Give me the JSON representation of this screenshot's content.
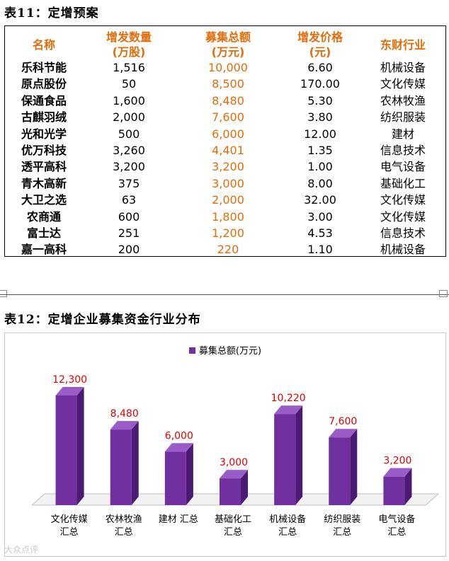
{
  "table_section": {
    "caption": "表11：定增预案",
    "headers": [
      "名称",
      "增发数量\n(万股)",
      "募集总额\n(万元)",
      "增发价格\n(元)",
      "东财行业"
    ],
    "rows": [
      {
        "name": "乐科节能",
        "shares": "1,516",
        "amount": "10,000",
        "price": "6.60",
        "industry": "机械设备"
      },
      {
        "name": "原点股份",
        "shares": "50",
        "amount": "8,500",
        "price": "170.00",
        "industry": "文化传媒"
      },
      {
        "name": "保通食品",
        "shares": "1,600",
        "amount": "8,480",
        "price": "5.30",
        "industry": "农林牧渔"
      },
      {
        "name": "古麒羽绒",
        "shares": "2,000",
        "amount": "7,600",
        "price": "3.80",
        "industry": "纺织服装"
      },
      {
        "name": "光和光学",
        "shares": "500",
        "amount": "6,000",
        "price": "12.00",
        "industry": "建材"
      },
      {
        "name": "优万科技",
        "shares": "3,260",
        "amount": "4,401",
        "price": "1.35",
        "industry": "信息技术"
      },
      {
        "name": "透平高科",
        "shares": "3,200",
        "amount": "3,200",
        "price": "1.00",
        "industry": "电气设备"
      },
      {
        "name": "青木高新",
        "shares": "375",
        "amount": "3,000",
        "price": "8.00",
        "industry": "基础化工"
      },
      {
        "name": "大卫之选",
        "shares": "63",
        "amount": "2,000",
        "price": "32.00",
        "industry": "文化传媒"
      },
      {
        "name": "农商通",
        "shares": "600",
        "amount": "1,800",
        "price": "3.00",
        "industry": "文化传媒"
      },
      {
        "name": "富士达",
        "shares": "251",
        "amount": "1,200",
        "price": "4.53",
        "industry": "信息技术"
      },
      {
        "name": "嘉一高科",
        "shares": "200",
        "amount": "220",
        "price": "1.10",
        "industry": "机械设备"
      }
    ]
  },
  "chart_section": {
    "caption": "表12：定增企业募集资金行业分布"
  },
  "watermark": "大众点评",
  "colors": {
    "bar": "#7030a0",
    "bar_side": "#4b1a73",
    "bar_top": "#9a5cc7",
    "data_label": "#e30000",
    "header_text": "#e36c0a",
    "amount_text": "#e36c0a"
  },
  "chart_data": {
    "type": "bar",
    "title": "",
    "legend": [
      "募集总额(万元)"
    ],
    "legend_position": "top",
    "categories": [
      "文化传媒\n汇总",
      "农林牧渔\n汇总",
      "建材 汇总",
      "基础化工\n汇总",
      "机械设备\n汇总",
      "纺织服装\n汇总",
      "电气设备\n汇总"
    ],
    "series": [
      {
        "name": "募集总额(万元)",
        "values": [
          12300,
          8480,
          6000,
          3000,
          10220,
          7600,
          3200
        ]
      }
    ],
    "data_labels": [
      "12,300",
      "8,480",
      "6,000",
      "3,000",
      "10,220",
      "7,600",
      "3,200"
    ],
    "ylim": [
      0,
      12300
    ],
    "grid": false,
    "three_d": true
  }
}
